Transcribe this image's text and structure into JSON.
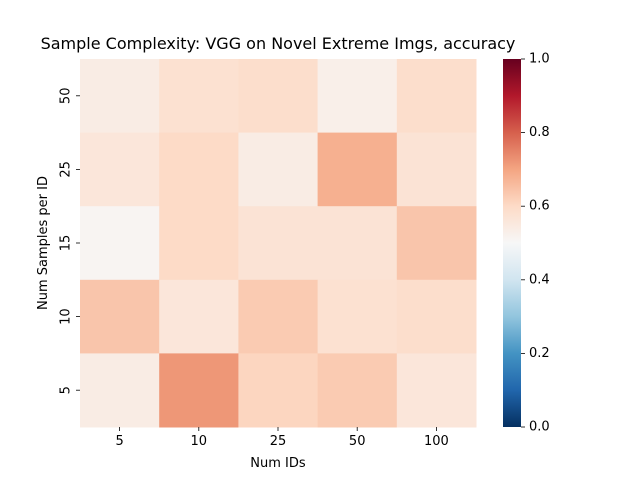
{
  "chart_data": {
    "type": "heatmap",
    "title": "Sample Complexity: VGG on Novel Extreme Imgs, accuracy",
    "xlabel": "Num IDs",
    "ylabel": "Num Samples per ID",
    "x_categories": [
      "5",
      "10",
      "25",
      "50",
      "100"
    ],
    "y_categories": [
      "50",
      "25",
      "15",
      "10",
      "5"
    ],
    "values": [
      [
        0.54,
        0.58,
        0.59,
        0.53,
        0.59
      ],
      [
        0.56,
        0.6,
        0.54,
        0.68,
        0.57
      ],
      [
        0.51,
        0.6,
        0.57,
        0.57,
        0.64
      ],
      [
        0.64,
        0.56,
        0.63,
        0.58,
        0.59
      ],
      [
        0.54,
        0.72,
        0.61,
        0.63,
        0.56
      ]
    ],
    "colormap": "RdBu_r",
    "vmin": 0.0,
    "vmax": 1.0,
    "colorbar_ticks": [
      "0.0",
      "0.2",
      "0.4",
      "0.6",
      "0.8",
      "1.0"
    ],
    "grid": false
  }
}
